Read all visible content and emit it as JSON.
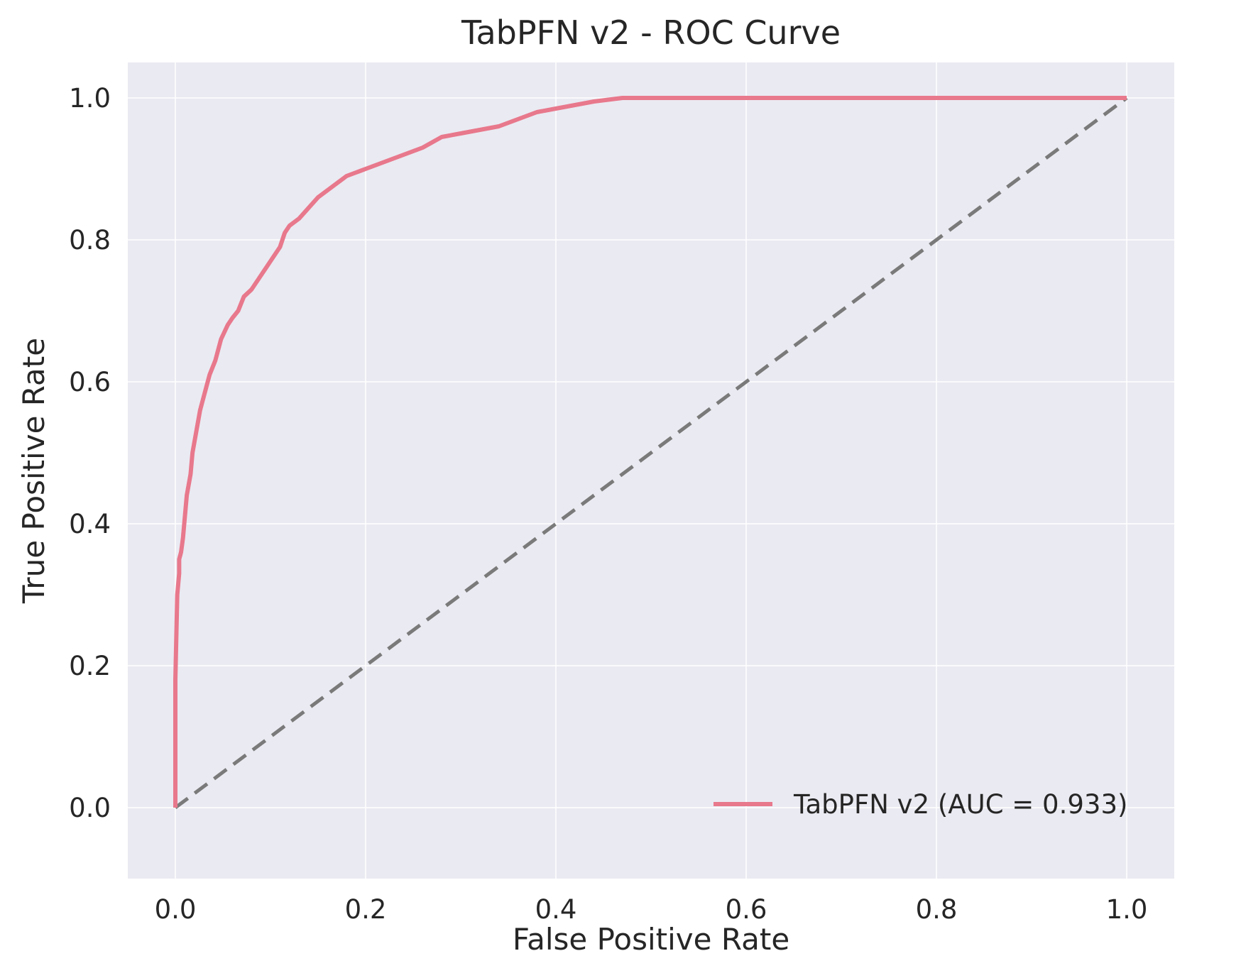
{
  "chart_data": {
    "type": "line",
    "title": "TabPFN v2 - ROC Curve",
    "xlabel": "False Positive Rate",
    "ylabel": "True Positive Rate",
    "xlim": [
      -0.05,
      1.05
    ],
    "ylim": [
      -0.1,
      1.05
    ],
    "x_ticks": [
      "0.0",
      "0.2",
      "0.4",
      "0.6",
      "0.8",
      "1.0"
    ],
    "y_ticks": [
      "0.0",
      "0.2",
      "0.4",
      "0.6",
      "0.8",
      "1.0"
    ],
    "grid": true,
    "legend_position": "lower-right",
    "series": [
      {
        "name": "TabPFN v2 (AUC = 0.933)",
        "color": "#e8788c",
        "style": "solid",
        "x": [
          0.0,
          0.0,
          0.002,
          0.004,
          0.004,
          0.006,
          0.008,
          0.012,
          0.016,
          0.018,
          0.022,
          0.026,
          0.03,
          0.036,
          0.042,
          0.048,
          0.055,
          0.06,
          0.066,
          0.072,
          0.08,
          0.09,
          0.1,
          0.11,
          0.115,
          0.12,
          0.13,
          0.14,
          0.15,
          0.16,
          0.17,
          0.18,
          0.19,
          0.2,
          0.22,
          0.24,
          0.26,
          0.28,
          0.3,
          0.32,
          0.34,
          0.36,
          0.38,
          0.4,
          0.42,
          0.44,
          0.47,
          0.5,
          0.6,
          0.7,
          0.8,
          0.9,
          1.0
        ],
        "y": [
          0.0,
          0.18,
          0.3,
          0.33,
          0.35,
          0.36,
          0.38,
          0.44,
          0.47,
          0.5,
          0.53,
          0.56,
          0.58,
          0.61,
          0.63,
          0.66,
          0.68,
          0.69,
          0.7,
          0.72,
          0.73,
          0.75,
          0.77,
          0.79,
          0.81,
          0.82,
          0.83,
          0.845,
          0.86,
          0.87,
          0.88,
          0.89,
          0.895,
          0.9,
          0.91,
          0.92,
          0.93,
          0.945,
          0.95,
          0.955,
          0.96,
          0.97,
          0.98,
          0.985,
          0.99,
          0.995,
          1.0,
          1.0,
          1.0,
          1.0,
          1.0,
          1.0,
          1.0
        ]
      },
      {
        "color": "#7a7a7a",
        "style": "dashed",
        "x": [
          0.0,
          1.0
        ],
        "y": [
          0.0,
          1.0
        ]
      }
    ]
  },
  "colors": {
    "plot_background": "#eaeaf2",
    "grid": "#ffffff",
    "text": "#262626"
  }
}
